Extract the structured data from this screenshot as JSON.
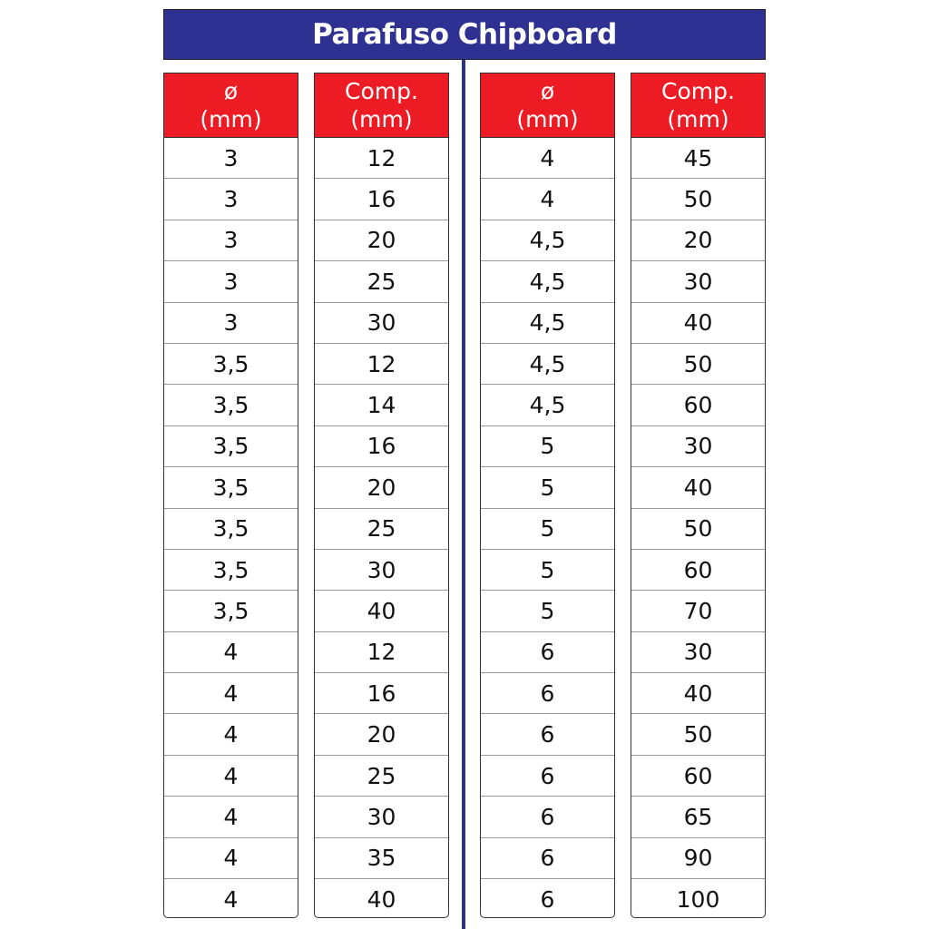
{
  "title": "Parafuso Chipboard",
  "colors": {
    "title_bg": "#2e3192",
    "header_bg": "#ed1c24",
    "divider": "#2e3192"
  },
  "columns": [
    {
      "header_line1": "ø",
      "header_line2": "(mm)",
      "values": [
        "3",
        "3",
        "3",
        "3",
        "3",
        "3,5",
        "3,5",
        "3,5",
        "3,5",
        "3,5",
        "3,5",
        "3,5",
        "4",
        "4",
        "4",
        "4",
        "4",
        "4",
        "4"
      ]
    },
    {
      "header_line1": "Comp.",
      "header_line2": "(mm)",
      "values": [
        "12",
        "16",
        "20",
        "25",
        "30",
        "12",
        "14",
        "16",
        "20",
        "25",
        "30",
        "40",
        "12",
        "16",
        "20",
        "25",
        "30",
        "35",
        "40"
      ]
    },
    {
      "header_line1": "ø",
      "header_line2": "(mm)",
      "values": [
        "4",
        "4",
        "4,5",
        "4,5",
        "4,5",
        "4,5",
        "4,5",
        "5",
        "5",
        "5",
        "5",
        "5",
        "6",
        "6",
        "6",
        "6",
        "6",
        "6",
        "6"
      ]
    },
    {
      "header_line1": "Comp.",
      "header_line2": "(mm)",
      "values": [
        "45",
        "50",
        "20",
        "30",
        "40",
        "50",
        "60",
        "30",
        "40",
        "50",
        "60",
        "70",
        "30",
        "40",
        "50",
        "60",
        "65",
        "90",
        "100"
      ]
    }
  ]
}
